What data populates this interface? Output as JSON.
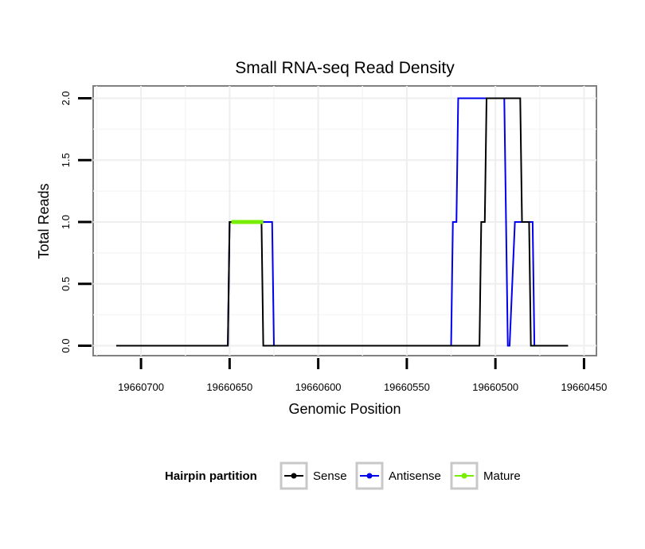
{
  "chart_data": {
    "type": "line",
    "title": "Small RNA-seq Read Density",
    "xlabel": "Genomic Position",
    "ylabel": "Total Reads",
    "x_reversed": true,
    "xlim": [
      19660727,
      19660443
    ],
    "ylim": [
      -0.08,
      2.1
    ],
    "x_ticks": [
      19660700,
      19660650,
      19660600,
      19660550,
      19660500,
      19660450
    ],
    "x_tick_labels": [
      "19660700",
      "19660650",
      "19660600",
      "19660550",
      "19660500",
      "19660450"
    ],
    "y_ticks": [
      0,
      0.5,
      1,
      1.5,
      2
    ],
    "y_tick_labels": [
      "0.0",
      "0.5",
      "1.0",
      "1.5",
      "2.0"
    ],
    "grid": true,
    "legend_position": "bottom",
    "legend_title": "Hairpin partition",
    "series": [
      {
        "name": "Sense",
        "color": "#000000",
        "x": [
          19660714,
          19660651,
          19660650,
          19660632,
          19660631,
          19660509,
          19660508,
          19660506,
          19660505,
          19660496,
          19660495,
          19660495,
          19660486,
          19660485,
          19660481,
          19660480,
          19660459
        ],
        "y": [
          0,
          0,
          1,
          1,
          0,
          0,
          1,
          1,
          2,
          2,
          2,
          2,
          2,
          1,
          1,
          0,
          0
        ]
      },
      {
        "name": "Antisense",
        "color": "#0000ee",
        "x": [
          19660651,
          19660650,
          19660626,
          19660625,
          19660614,
          19660613,
          19660525,
          19660524,
          19660522,
          19660521,
          19660496,
          19660495,
          19660493,
          19660492,
          19660489,
          19660488,
          19660480,
          19660479,
          19660478,
          19660477
        ],
        "y": [
          0,
          1,
          1,
          0,
          0,
          0,
          0,
          1,
          1,
          2,
          2,
          2,
          0,
          0,
          1,
          1,
          1,
          1,
          0,
          0
        ]
      },
      {
        "name": "Mature",
        "color": "#77ee00",
        "x": [
          19660649,
          19660631
        ],
        "y": [
          1,
          1
        ]
      }
    ]
  }
}
